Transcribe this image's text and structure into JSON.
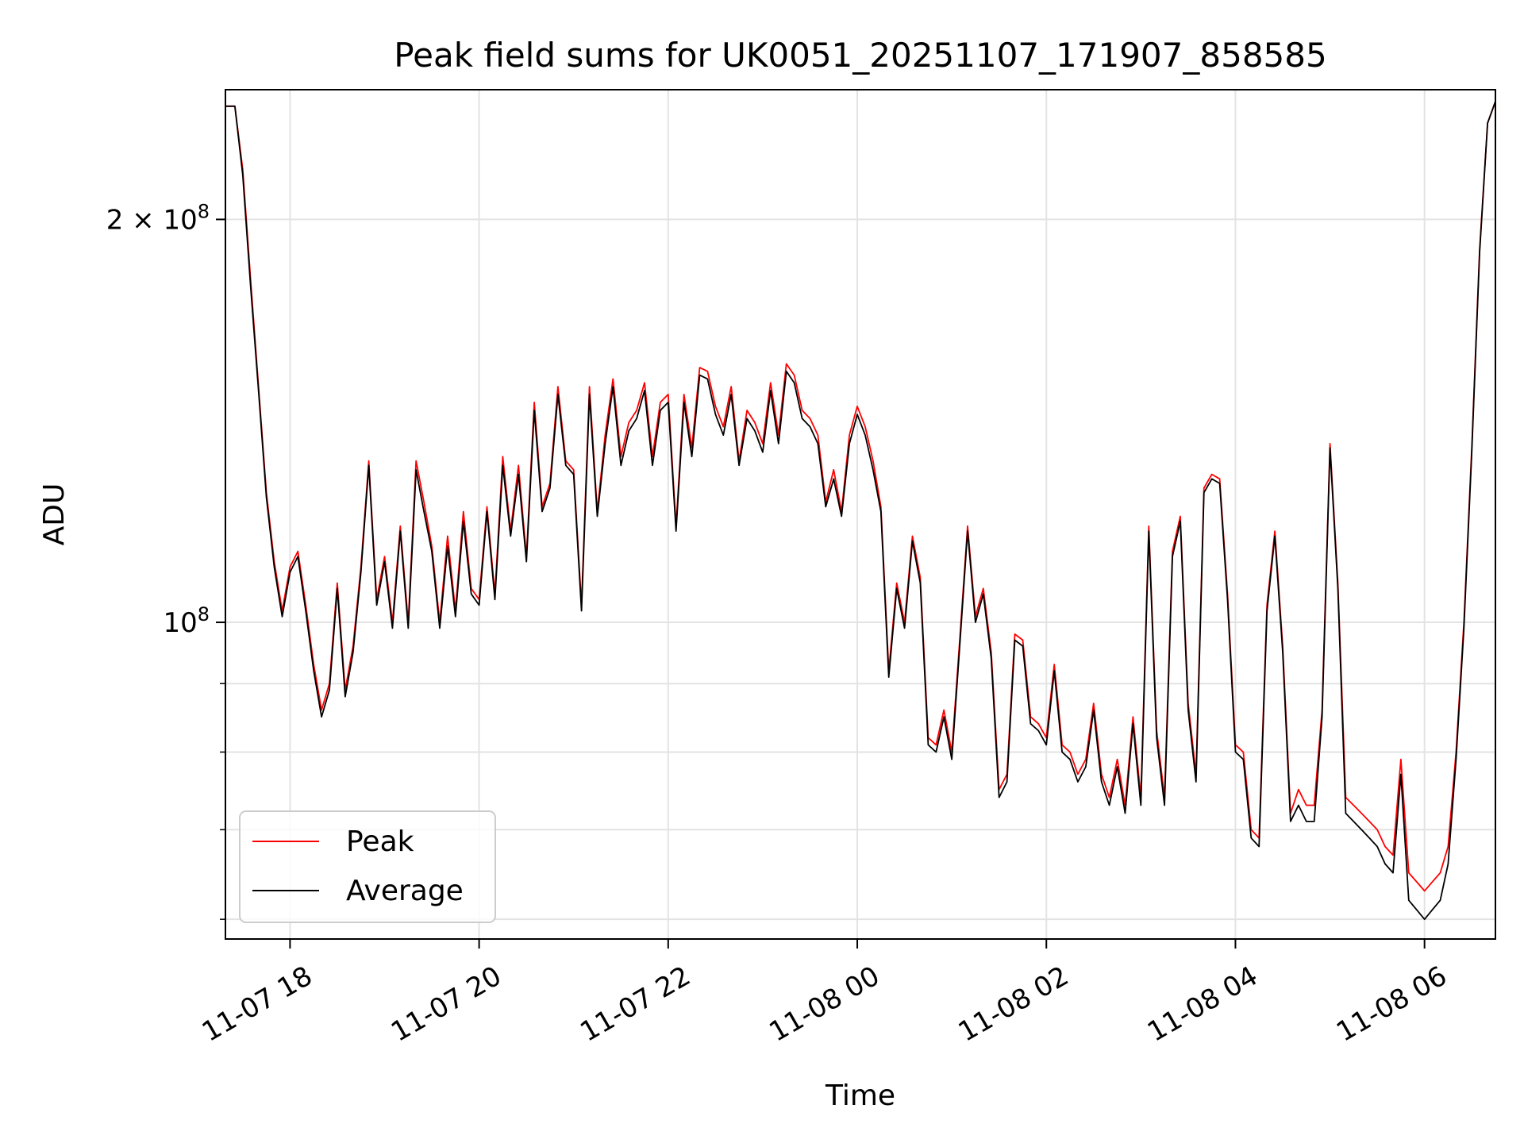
{
  "chart_data": {
    "type": "line",
    "title": "Peak field sums for UK0051_20251107_171907_858585",
    "xlabel": "Time",
    "ylabel": "ADU",
    "y_scale": "log",
    "ylim": [
      58000000,
      250000000
    ],
    "xlim": [
      "2025-11-07 17:19",
      "2025-11-08 06:45"
    ],
    "grid": true,
    "legend_position": "lower-left",
    "x_tick_labels": [
      "11-07 18",
      "11-07 20",
      "11-07 22",
      "11-08 00",
      "11-08 02",
      "11-08 04",
      "11-08 06"
    ],
    "x_tick_times": [
      "2025-11-07 18:00",
      "2025-11-07 20:00",
      "2025-11-07 22:00",
      "2025-11-08 00:00",
      "2025-11-08 02:00",
      "2025-11-08 04:00",
      "2025-11-08 06:00"
    ],
    "y_major_ticks": [
      {
        "value": 100000000,
        "mantissa": "",
        "exp": "8"
      },
      {
        "value": 200000000,
        "mantissa": "2",
        "exp": "8"
      }
    ],
    "y_minor_ticks": [
      60000000,
      70000000,
      80000000,
      90000000
    ],
    "colors": {
      "Peak": "#ff0000",
      "Average": "#000000"
    },
    "series": [
      {
        "name": "Peak",
        "color": "#ff0000",
        "x": [
          "2025-11-07 17:19",
          "2025-11-07 17:25",
          "2025-11-07 17:30",
          "2025-11-07 17:35",
          "2025-11-07 17:40",
          "2025-11-07 17:45",
          "2025-11-07 17:50",
          "2025-11-07 17:55",
          "2025-11-07 18:00",
          "2025-11-07 18:05",
          "2025-11-07 18:10",
          "2025-11-07 18:15",
          "2025-11-07 18:20",
          "2025-11-07 18:25",
          "2025-11-07 18:30",
          "2025-11-07 18:35",
          "2025-11-07 18:40",
          "2025-11-07 18:45",
          "2025-11-07 18:50",
          "2025-11-07 18:55",
          "2025-11-07 19:00",
          "2025-11-07 19:05",
          "2025-11-07 19:10",
          "2025-11-07 19:15",
          "2025-11-07 19:20",
          "2025-11-07 19:25",
          "2025-11-07 19:30",
          "2025-11-07 19:35",
          "2025-11-07 19:40",
          "2025-11-07 19:45",
          "2025-11-07 19:50",
          "2025-11-07 19:55",
          "2025-11-07 20:00",
          "2025-11-07 20:05",
          "2025-11-07 20:10",
          "2025-11-07 20:15",
          "2025-11-07 20:20",
          "2025-11-07 20:25",
          "2025-11-07 20:30",
          "2025-11-07 20:35",
          "2025-11-07 20:40",
          "2025-11-07 20:45",
          "2025-11-07 20:50",
          "2025-11-07 20:55",
          "2025-11-07 21:00",
          "2025-11-07 21:05",
          "2025-11-07 21:10",
          "2025-11-07 21:15",
          "2025-11-07 21:20",
          "2025-11-07 21:25",
          "2025-11-07 21:30",
          "2025-11-07 21:35",
          "2025-11-07 21:40",
          "2025-11-07 21:45",
          "2025-11-07 21:50",
          "2025-11-07 21:55",
          "2025-11-07 22:00",
          "2025-11-07 22:05",
          "2025-11-07 22:10",
          "2025-11-07 22:15",
          "2025-11-07 22:20",
          "2025-11-07 22:25",
          "2025-11-07 22:30",
          "2025-11-07 22:35",
          "2025-11-07 22:40",
          "2025-11-07 22:45",
          "2025-11-07 22:50",
          "2025-11-07 22:55",
          "2025-11-07 23:00",
          "2025-11-07 23:05",
          "2025-11-07 23:10",
          "2025-11-07 23:15",
          "2025-11-07 23:20",
          "2025-11-07 23:25",
          "2025-11-07 23:30",
          "2025-11-07 23:35",
          "2025-11-07 23:40",
          "2025-11-07 23:45",
          "2025-11-07 23:50",
          "2025-11-07 23:55",
          "2025-11-08 00:00",
          "2025-11-08 00:05",
          "2025-11-08 00:10",
          "2025-11-08 00:15",
          "2025-11-08 00:20",
          "2025-11-08 00:25",
          "2025-11-08 00:30",
          "2025-11-08 00:35",
          "2025-11-08 00:40",
          "2025-11-08 00:45",
          "2025-11-08 00:50",
          "2025-11-08 00:55",
          "2025-11-08 01:00",
          "2025-11-08 01:05",
          "2025-11-08 01:10",
          "2025-11-08 01:15",
          "2025-11-08 01:20",
          "2025-11-08 01:25",
          "2025-11-08 01:30",
          "2025-11-08 01:35",
          "2025-11-08 01:40",
          "2025-11-08 01:45",
          "2025-11-08 01:50",
          "2025-11-08 01:55",
          "2025-11-08 02:00",
          "2025-11-08 02:05",
          "2025-11-08 02:10",
          "2025-11-08 02:15",
          "2025-11-08 02:20",
          "2025-11-08 02:25",
          "2025-11-08 02:30",
          "2025-11-08 02:35",
          "2025-11-08 02:40",
          "2025-11-08 02:45",
          "2025-11-08 02:50",
          "2025-11-08 02:55",
          "2025-11-08 03:00",
          "2025-11-08 03:05",
          "2025-11-08 03:10",
          "2025-11-08 03:15",
          "2025-11-08 03:20",
          "2025-11-08 03:25",
          "2025-11-08 03:30",
          "2025-11-08 03:35",
          "2025-11-08 03:40",
          "2025-11-08 03:45",
          "2025-11-08 03:50",
          "2025-11-08 03:55",
          "2025-11-08 04:00",
          "2025-11-08 04:05",
          "2025-11-08 04:10",
          "2025-11-08 04:15",
          "2025-11-08 04:20",
          "2025-11-08 04:25",
          "2025-11-08 04:30",
          "2025-11-08 04:35",
          "2025-11-08 04:40",
          "2025-11-08 04:45",
          "2025-11-08 04:50",
          "2025-11-08 04:55",
          "2025-11-08 05:00",
          "2025-11-08 05:05",
          "2025-11-08 05:10",
          "2025-11-08 05:15",
          "2025-11-08 05:20",
          "2025-11-08 05:25",
          "2025-11-08 05:30",
          "2025-11-08 05:35",
          "2025-11-08 05:40",
          "2025-11-08 05:45",
          "2025-11-08 05:50",
          "2025-11-08 05:55",
          "2025-11-08 06:00",
          "2025-11-08 06:05",
          "2025-11-08 06:10",
          "2025-11-08 06:15",
          "2025-11-08 06:20",
          "2025-11-08 06:25",
          "2025-11-08 06:30",
          "2025-11-08 06:35",
          "2025-11-08 06:40",
          "2025-11-08 06:45"
        ],
        "values": [
          243000000,
          243000000,
          218000000,
          180000000,
          150000000,
          125000000,
          111000000,
          102000000,
          110000000,
          113000000,
          103000000,
          93000000,
          86000000,
          90000000,
          107000000,
          89000000,
          96000000,
          110000000,
          132000000,
          104000000,
          112000000,
          100000000,
          118000000,
          100000000,
          132000000,
          123000000,
          114000000,
          100000000,
          116000000,
          102000000,
          121000000,
          106000000,
          104000000,
          122000000,
          105000000,
          133000000,
          117000000,
          131000000,
          112000000,
          146000000,
          122000000,
          127000000,
          150000000,
          132000000,
          130000000,
          103000000,
          150000000,
          121000000,
          138000000,
          152000000,
          133000000,
          141000000,
          144000000,
          151000000,
          133000000,
          146000000,
          148000000,
          118000000,
          148000000,
          135000000,
          155000000,
          154000000,
          145000000,
          140000000,
          150000000,
          132000000,
          144000000,
          141000000,
          136000000,
          151000000,
          138000000,
          156000000,
          153000000,
          144000000,
          142000000,
          138000000,
          123000000,
          130000000,
          121000000,
          138000000,
          145000000,
          140000000,
          132000000,
          122000000,
          92000000,
          107000000,
          100000000,
          116000000,
          108000000,
          82000000,
          81000000,
          86000000,
          80000000,
          97000000,
          118000000,
          101000000,
          106000000,
          95000000,
          75000000,
          77000000,
          98000000,
          97000000,
          85000000,
          84000000,
          82000000,
          93000000,
          81000000,
          80000000,
          77000000,
          79000000,
          87000000,
          77000000,
          74000000,
          79000000,
          73000000,
          85000000,
          74000000,
          118000000,
          83000000,
          74000000,
          113000000,
          120000000,
          87000000,
          77000000,
          126000000,
          129000000,
          128000000,
          105000000,
          81000000,
          80000000,
          70000000,
          69000000,
          103000000,
          117000000,
          96000000,
          72000000,
          75000000,
          73000000,
          73000000,
          86000000,
          136000000,
          107000000,
          74000000,
          73000000,
          72000000,
          71000000,
          70000000,
          68000000,
          67000000,
          79000000,
          65000000,
          64000000,
          63000000,
          64000000,
          65000000,
          68000000,
          80000000,
          100000000,
          135000000,
          190000000,
          236000000,
          245000000
        ]
      },
      {
        "name": "Average",
        "color": "#000000",
        "x": [
          "2025-11-07 17:19",
          "2025-11-07 17:25",
          "2025-11-07 17:30",
          "2025-11-07 17:35",
          "2025-11-07 17:40",
          "2025-11-07 17:45",
          "2025-11-07 17:50",
          "2025-11-07 17:55",
          "2025-11-07 18:00",
          "2025-11-07 18:05",
          "2025-11-07 18:10",
          "2025-11-07 18:15",
          "2025-11-07 18:20",
          "2025-11-07 18:25",
          "2025-11-07 18:30",
          "2025-11-07 18:35",
          "2025-11-07 18:40",
          "2025-11-07 18:45",
          "2025-11-07 18:50",
          "2025-11-07 18:55",
          "2025-11-07 19:00",
          "2025-11-07 19:05",
          "2025-11-07 19:10",
          "2025-11-07 19:15",
          "2025-11-07 19:20",
          "2025-11-07 19:25",
          "2025-11-07 19:30",
          "2025-11-07 19:35",
          "2025-11-07 19:40",
          "2025-11-07 19:45",
          "2025-11-07 19:50",
          "2025-11-07 19:55",
          "2025-11-07 20:00",
          "2025-11-07 20:05",
          "2025-11-07 20:10",
          "2025-11-07 20:15",
          "2025-11-07 20:20",
          "2025-11-07 20:25",
          "2025-11-07 20:30",
          "2025-11-07 20:35",
          "2025-11-07 20:40",
          "2025-11-07 20:45",
          "2025-11-07 20:50",
          "2025-11-07 20:55",
          "2025-11-07 21:00",
          "2025-11-07 21:05",
          "2025-11-07 21:10",
          "2025-11-07 21:15",
          "2025-11-07 21:20",
          "2025-11-07 21:25",
          "2025-11-07 21:30",
          "2025-11-07 21:35",
          "2025-11-07 21:40",
          "2025-11-07 21:45",
          "2025-11-07 21:50",
          "2025-11-07 21:55",
          "2025-11-07 22:00",
          "2025-11-07 22:05",
          "2025-11-07 22:10",
          "2025-11-07 22:15",
          "2025-11-07 22:20",
          "2025-11-07 22:25",
          "2025-11-07 22:30",
          "2025-11-07 22:35",
          "2025-11-07 22:40",
          "2025-11-07 22:45",
          "2025-11-07 22:50",
          "2025-11-07 22:55",
          "2025-11-07 23:00",
          "2025-11-07 23:05",
          "2025-11-07 23:10",
          "2025-11-07 23:15",
          "2025-11-07 23:20",
          "2025-11-07 23:25",
          "2025-11-07 23:30",
          "2025-11-07 23:35",
          "2025-11-07 23:40",
          "2025-11-07 23:45",
          "2025-11-07 23:50",
          "2025-11-07 23:55",
          "2025-11-08 00:00",
          "2025-11-08 00:05",
          "2025-11-08 00:10",
          "2025-11-08 00:15",
          "2025-11-08 00:20",
          "2025-11-08 00:25",
          "2025-11-08 00:30",
          "2025-11-08 00:35",
          "2025-11-08 00:40",
          "2025-11-08 00:45",
          "2025-11-08 00:50",
          "2025-11-08 00:55",
          "2025-11-08 01:00",
          "2025-11-08 01:05",
          "2025-11-08 01:10",
          "2025-11-08 01:15",
          "2025-11-08 01:20",
          "2025-11-08 01:25",
          "2025-11-08 01:30",
          "2025-11-08 01:35",
          "2025-11-08 01:40",
          "2025-11-08 01:45",
          "2025-11-08 01:50",
          "2025-11-08 01:55",
          "2025-11-08 02:00",
          "2025-11-08 02:05",
          "2025-11-08 02:10",
          "2025-11-08 02:15",
          "2025-11-08 02:20",
          "2025-11-08 02:25",
          "2025-11-08 02:30",
          "2025-11-08 02:35",
          "2025-11-08 02:40",
          "2025-11-08 02:45",
          "2025-11-08 02:50",
          "2025-11-08 02:55",
          "2025-11-08 03:00",
          "2025-11-08 03:05",
          "2025-11-08 03:10",
          "2025-11-08 03:15",
          "2025-11-08 03:20",
          "2025-11-08 03:25",
          "2025-11-08 03:30",
          "2025-11-08 03:35",
          "2025-11-08 03:40",
          "2025-11-08 03:45",
          "2025-11-08 03:50",
          "2025-11-08 03:55",
          "2025-11-08 04:00",
          "2025-11-08 04:05",
          "2025-11-08 04:10",
          "2025-11-08 04:15",
          "2025-11-08 04:20",
          "2025-11-08 04:25",
          "2025-11-08 04:30",
          "2025-11-08 04:35",
          "2025-11-08 04:40",
          "2025-11-08 04:45",
          "2025-11-08 04:50",
          "2025-11-08 04:55",
          "2025-11-08 05:00",
          "2025-11-08 05:05",
          "2025-11-08 05:10",
          "2025-11-08 05:15",
          "2025-11-08 05:20",
          "2025-11-08 05:25",
          "2025-11-08 05:30",
          "2025-11-08 05:35",
          "2025-11-08 05:40",
          "2025-11-08 05:45",
          "2025-11-08 05:50",
          "2025-11-08 05:55",
          "2025-11-08 06:00",
          "2025-11-08 06:05",
          "2025-11-08 06:10",
          "2025-11-08 06:15",
          "2025-11-08 06:20",
          "2025-11-08 06:25",
          "2025-11-08 06:30",
          "2025-11-08 06:35",
          "2025-11-08 06:40",
          "2025-11-08 06:45"
        ],
        "values": [
          243000000,
          243000000,
          216000000,
          178000000,
          149000000,
          124000000,
          110000000,
          101000000,
          109000000,
          112000000,
          102000000,
          92000000,
          85000000,
          89000000,
          106000000,
          88000000,
          95000000,
          109000000,
          131000000,
          103000000,
          111000000,
          99000000,
          117000000,
          99000000,
          130000000,
          121000000,
          113000000,
          99000000,
          114000000,
          101000000,
          119000000,
          105000000,
          103000000,
          121000000,
          104000000,
          131000000,
          116000000,
          129000000,
          111000000,
          144000000,
          121000000,
          126000000,
          148000000,
          131000000,
          129000000,
          102000000,
          148000000,
          120000000,
          136000000,
          150000000,
          131000000,
          139000000,
          142000000,
          149000000,
          131000000,
          144000000,
          146000000,
          117000000,
          146000000,
          133000000,
          153000000,
          152000000,
          143000000,
          138000000,
          148000000,
          131000000,
          142000000,
          139000000,
          134000000,
          149000000,
          136000000,
          154000000,
          151000000,
          142000000,
          140000000,
          136000000,
          122000000,
          128000000,
          120000000,
          136000000,
          143000000,
          138000000,
          130000000,
          121000000,
          91000000,
          106000000,
          99000000,
          115000000,
          107000000,
          81000000,
          80000000,
          85000000,
          79000000,
          96000000,
          117000000,
          100000000,
          105000000,
          94000000,
          74000000,
          76000000,
          97000000,
          96000000,
          84000000,
          83000000,
          81000000,
          92000000,
          80000000,
          79000000,
          76000000,
          78000000,
          86000000,
          76000000,
          73000000,
          78000000,
          72000000,
          84000000,
          73000000,
          117000000,
          82000000,
          73000000,
          112000000,
          119000000,
          86000000,
          76000000,
          125000000,
          128000000,
          127000000,
          104000000,
          80000000,
          79000000,
          69000000,
          68000000,
          102000000,
          116000000,
          95000000,
          71000000,
          73000000,
          71000000,
          71000000,
          85000000,
          135000000,
          106000000,
          72000000,
          71000000,
          70000000,
          69000000,
          68000000,
          66000000,
          65000000,
          77000000,
          62000000,
          61000000,
          60000000,
          61000000,
          62000000,
          66000000,
          79000000,
          99000000,
          134000000,
          189000000,
          236000000,
          245000000
        ]
      }
    ]
  }
}
